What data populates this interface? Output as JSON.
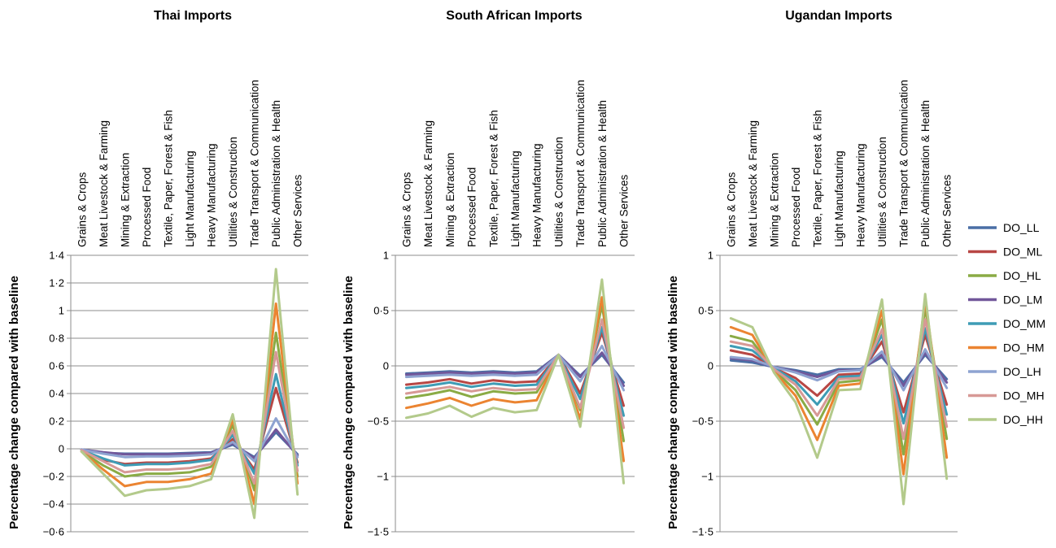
{
  "categories": [
    "Grains & Crops",
    "Meat Livestock & Farming",
    "Mining & Extraction",
    "Processed Food",
    "Textile, Paper, Forest & Fish",
    "Light Manufacturing",
    "Heavy Manufacturing",
    "Utilities & Construction",
    "Trade Transport & Communication",
    "Public Administration & Health",
    "Other Services"
  ],
  "series_names": [
    "DO_LL",
    "DO_ML",
    "DO_HL",
    "DO_LM",
    "DO_MM",
    "DO_HM",
    "DO_LH",
    "DO_MH",
    "DO_HH"
  ],
  "series_colors": [
    "#4a6fa5",
    "#b84744",
    "#8aab45",
    "#71579a",
    "#3e9cb5",
    "#eb8431",
    "#8ea3d1",
    "#d79996",
    "#b3ca8b"
  ],
  "chart_data": [
    {
      "type": "line",
      "title": "Thai Imports",
      "ylabel": "Percentage change compared with baseline",
      "ylim": [
        -0.6,
        1.4
      ],
      "yticks": [
        -0.6,
        -0.4,
        -0.2,
        0,
        0.2,
        0.4,
        0.6,
        0.8,
        1,
        1.2,
        1.4
      ],
      "ytick_labels": [
        "−0·6",
        "−0·4",
        "−0·2",
        "0",
        "0·2",
        "0·4",
        "0·6",
        "0·8",
        "1",
        "1·2",
        "1·4"
      ],
      "grid": true,
      "categories": [
        "Grains & Crops",
        "Meat Livestock & Farming",
        "Mining & Extraction",
        "Processed Food",
        "Textile, Paper, Forest & Fish",
        "Light Manufacturing",
        "Heavy Manufacturing",
        "Utilities & Construction",
        "Trade Transport & Communication",
        "Public Administration & Health",
        "Other Services"
      ],
      "series": [
        {
          "name": "DO_LL",
          "values": [
            -0.005,
            -0.03,
            -0.035,
            -0.035,
            -0.035,
            -0.03,
            -0.025,
            0.03,
            -0.06,
            0.12,
            -0.04
          ]
        },
        {
          "name": "DO_ML",
          "values": [
            -0.01,
            -0.08,
            -0.11,
            -0.1,
            -0.1,
            -0.09,
            -0.07,
            0.07,
            -0.15,
            0.44,
            -0.1
          ]
        },
        {
          "name": "DO_HL",
          "values": [
            -0.02,
            -0.12,
            -0.2,
            -0.18,
            -0.18,
            -0.17,
            -0.13,
            0.17,
            -0.3,
            0.84,
            -0.2
          ]
        },
        {
          "name": "DO_LM",
          "values": [
            -0.005,
            -0.025,
            -0.04,
            -0.04,
            -0.04,
            -0.035,
            -0.03,
            0.04,
            -0.07,
            0.14,
            -0.05
          ]
        },
        {
          "name": "DO_MM",
          "values": [
            -0.01,
            -0.07,
            -0.12,
            -0.11,
            -0.11,
            -0.1,
            -0.08,
            0.1,
            -0.18,
            0.54,
            -0.12
          ]
        },
        {
          "name": "DO_HM",
          "values": [
            -0.02,
            -0.15,
            -0.27,
            -0.24,
            -0.24,
            -0.22,
            -0.18,
            0.21,
            -0.4,
            1.05,
            -0.25
          ]
        },
        {
          "name": "DO_LH",
          "values": [
            -0.005,
            -0.035,
            -0.06,
            -0.055,
            -0.055,
            -0.05,
            -0.04,
            0.05,
            -0.09,
            0.22,
            -0.06
          ]
        },
        {
          "name": "DO_MH",
          "values": [
            -0.01,
            -0.09,
            -0.17,
            -0.15,
            -0.15,
            -0.14,
            -0.11,
            0.13,
            -0.25,
            0.7,
            -0.16
          ]
        },
        {
          "name": "DO_HH",
          "values": [
            -0.02,
            -0.18,
            -0.34,
            -0.3,
            -0.29,
            -0.27,
            -0.22,
            0.25,
            -0.5,
            1.3,
            -0.33
          ]
        }
      ]
    },
    {
      "type": "line",
      "title": "South African Imports",
      "ylabel": "Percentage change compared with baseline",
      "ylim": [
        -1.5,
        1
      ],
      "yticks": [
        -1.5,
        -1,
        -0.5,
        0,
        0.5,
        1
      ],
      "ytick_labels": [
        "−1·5",
        "−1",
        "−0·5",
        "0",
        "0·5",
        "1"
      ],
      "grid": true,
      "categories": [
        "Grains & Crops",
        "Meat Livestock & Farming",
        "Mining & Extraction",
        "Processed Food",
        "Textile, Paper, Forest & Fish",
        "Light Manufacturing",
        "Heavy Manufacturing",
        "Utilities & Construction",
        "Trade Transport & Communication",
        "Public Administration & Health",
        "Other Services"
      ],
      "series": [
        {
          "name": "DO_LL",
          "values": [
            -0.07,
            -0.06,
            -0.05,
            -0.06,
            -0.05,
            -0.06,
            -0.05,
            0.1,
            -0.09,
            0.1,
            -0.15
          ]
        },
        {
          "name": "DO_ML",
          "values": [
            -0.17,
            -0.15,
            -0.12,
            -0.16,
            -0.13,
            -0.15,
            -0.14,
            0.1,
            -0.25,
            0.3,
            -0.36
          ]
        },
        {
          "name": "DO_HL",
          "values": [
            -0.29,
            -0.26,
            -0.22,
            -0.28,
            -0.23,
            -0.25,
            -0.24,
            0.1,
            -0.4,
            0.55,
            -0.68
          ]
        },
        {
          "name": "DO_LM",
          "values": [
            -0.08,
            -0.07,
            -0.06,
            -0.07,
            -0.06,
            -0.07,
            -0.06,
            0.1,
            -0.1,
            0.12,
            -0.18
          ]
        },
        {
          "name": "DO_MM",
          "values": [
            -0.2,
            -0.18,
            -0.15,
            -0.19,
            -0.16,
            -0.18,
            -0.17,
            0.1,
            -0.3,
            0.35,
            -0.45
          ]
        },
        {
          "name": "DO_HM",
          "values": [
            -0.38,
            -0.34,
            -0.29,
            -0.36,
            -0.3,
            -0.33,
            -0.31,
            0.1,
            -0.48,
            0.62,
            -0.86
          ]
        },
        {
          "name": "DO_LH",
          "values": [
            -0.1,
            -0.09,
            -0.08,
            -0.09,
            -0.08,
            -0.09,
            -0.08,
            0.1,
            -0.14,
            0.18,
            -0.22
          ]
        },
        {
          "name": "DO_MH",
          "values": [
            -0.25,
            -0.22,
            -0.19,
            -0.23,
            -0.2,
            -0.22,
            -0.21,
            0.1,
            -0.38,
            0.42,
            -0.56
          ]
        },
        {
          "name": "DO_HH",
          "values": [
            -0.47,
            -0.43,
            -0.36,
            -0.46,
            -0.38,
            -0.42,
            -0.4,
            0.1,
            -0.55,
            0.78,
            -1.06
          ]
        }
      ]
    },
    {
      "type": "line",
      "title": "Ugandan Imports",
      "ylabel": "Percentage change compared with baseline",
      "ylim": [
        -1.5,
        1
      ],
      "yticks": [
        -1.5,
        -1,
        -0.5,
        0,
        0.5,
        1
      ],
      "ytick_labels": [
        "−1·5",
        "−1",
        "−0·5",
        "0",
        "0·5",
        "1"
      ],
      "grid": true,
      "categories": [
        "Grains & Crops",
        "Meat Livestock & Farming",
        "Mining & Extraction",
        "Processed Food",
        "Textile, Paper, Forest & Fish",
        "Light Manufacturing",
        "Heavy Manufacturing",
        "Utilities & Construction",
        "Trade Transport & Communication",
        "Public Administration & Health",
        "Other Services"
      ],
      "series": [
        {
          "name": "DO_LL",
          "values": [
            0.05,
            0.03,
            -0.01,
            -0.04,
            -0.08,
            -0.03,
            -0.03,
            0.08,
            -0.15,
            0.1,
            -0.12
          ]
        },
        {
          "name": "DO_ML",
          "values": [
            0.14,
            0.1,
            -0.02,
            -0.11,
            -0.27,
            -0.08,
            -0.07,
            0.22,
            -0.42,
            0.28,
            -0.35
          ]
        },
        {
          "name": "DO_HL",
          "values": [
            0.27,
            0.22,
            -0.04,
            -0.22,
            -0.53,
            -0.15,
            -0.13,
            0.42,
            -0.8,
            0.52,
            -0.66
          ]
        },
        {
          "name": "DO_LM",
          "values": [
            0.07,
            0.05,
            -0.01,
            -0.05,
            -0.1,
            -0.04,
            -0.04,
            0.1,
            -0.18,
            0.12,
            -0.15
          ]
        },
        {
          "name": "DO_MM",
          "values": [
            0.18,
            0.14,
            -0.02,
            -0.14,
            -0.35,
            -0.1,
            -0.09,
            0.28,
            -0.52,
            0.34,
            -0.44
          ]
        },
        {
          "name": "DO_HM",
          "values": [
            0.35,
            0.28,
            -0.05,
            -0.27,
            -0.67,
            -0.18,
            -0.16,
            0.5,
            -0.98,
            0.6,
            -0.83
          ]
        },
        {
          "name": "DO_LH",
          "values": [
            0.08,
            0.06,
            -0.01,
            -0.06,
            -0.13,
            -0.05,
            -0.04,
            0.13,
            -0.22,
            0.15,
            -0.2
          ]
        },
        {
          "name": "DO_MH",
          "values": [
            0.22,
            0.18,
            -0.03,
            -0.17,
            -0.45,
            -0.12,
            -0.11,
            0.33,
            -0.66,
            0.42,
            -0.55
          ]
        },
        {
          "name": "DO_HH",
          "values": [
            0.43,
            0.35,
            -0.06,
            -0.33,
            -0.83,
            -0.22,
            -0.21,
            0.6,
            -1.25,
            0.65,
            -1.02
          ]
        }
      ]
    }
  ]
}
